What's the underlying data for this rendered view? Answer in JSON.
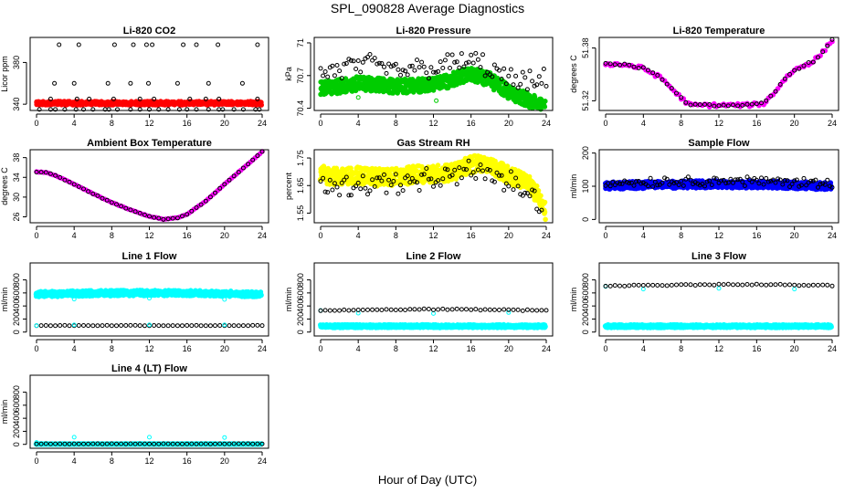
{
  "figure": {
    "title": "SPL_090828  Average Diagnostics",
    "xlabel": "Hour of Day (UTC)"
  },
  "colors": {
    "black": "#000000",
    "red": "#ff0000",
    "green": "#00cc00",
    "magenta": "#ff00ff",
    "yellow": "#ffff00",
    "blue": "#0000ff",
    "cyan": "#00ffff"
  },
  "chart_data": [
    {
      "type": "scatter",
      "title": "Li-820 CO2",
      "ylabel": "Licor ppm",
      "xlim": [
        0,
        24
      ],
      "xticks": [
        0,
        4,
        8,
        12,
        16,
        20,
        24
      ],
      "ylim": [
        334,
        404
      ],
      "yticks": [
        340,
        380
      ],
      "series": [
        {
          "color": "red",
          "filled": true,
          "kind": "band",
          "y": 341,
          "spread": 2,
          "jitter": 0.8
        },
        {
          "color": "black",
          "filled": false,
          "kind": "points",
          "x": [
            0.3,
            1.5,
            2,
            3,
            4.2,
            5,
            6,
            7.3,
            7.7,
            8.6,
            10,
            11,
            12,
            13,
            14,
            15.2,
            16,
            17,
            18.3,
            19.4,
            19.8,
            21,
            22,
            23.3,
            23.7,
            1.5,
            4.3,
            5.6,
            8.2,
            11,
            12.5,
            16.3,
            18,
            19.4,
            23.5,
            1.9,
            4,
            7.6,
            10,
            11.9,
            15,
            18.3,
            21.9,
            2.4,
            4.5,
            8.3,
            10.3,
            11.7,
            12.3,
            15.6,
            17,
            19.3,
            23.5
          ],
          "y": [
            335,
            335,
            335,
            335,
            335,
            335,
            335,
            335,
            335,
            335,
            335,
            335,
            335,
            335,
            335,
            335,
            335,
            335,
            335,
            335,
            335,
            335,
            335,
            335,
            335,
            345,
            345,
            345,
            345,
            345,
            345,
            345,
            345,
            345,
            345,
            360,
            360,
            360,
            360,
            360,
            360,
            360,
            360,
            397,
            397,
            397,
            397,
            397,
            397,
            397,
            397,
            397,
            397
          ]
        }
      ]
    },
    {
      "type": "scatter",
      "title": "Li-820 Pressure",
      "ylabel": "kPa",
      "xlim": [
        0,
        24
      ],
      "xticks": [
        0,
        4,
        8,
        12,
        16,
        20,
        24
      ],
      "ylim": [
        70.38,
        71.05
      ],
      "yticks": [
        70.4,
        70.7,
        71.0
      ],
      "series": [
        {
          "color": "green",
          "filled": true,
          "kind": "band",
          "x": [
            0,
            2,
            4,
            6,
            8,
            10,
            12,
            14,
            16,
            18,
            20,
            22,
            24
          ],
          "y": [
            70.59,
            70.6,
            70.63,
            70.62,
            70.6,
            70.61,
            70.62,
            70.66,
            70.72,
            70.66,
            70.55,
            70.48,
            70.4
          ],
          "spread": 0.09,
          "jitter": 0.02
        },
        {
          "color": "green",
          "filled": false,
          "kind": "points",
          "x": [
            4,
            12.3,
            20
          ],
          "y": [
            70.5,
            70.47,
            70.49
          ]
        },
        {
          "color": "black",
          "filled": false,
          "kind": "curve",
          "x": [
            0,
            2,
            4,
            6,
            8,
            10,
            12,
            14,
            16,
            18,
            20,
            22,
            24
          ],
          "y": [
            70.72,
            70.75,
            70.8,
            70.78,
            70.74,
            70.76,
            70.78,
            70.8,
            70.84,
            70.76,
            70.66,
            70.62,
            70.65
          ],
          "spread": 0.16,
          "jitter": 0.05
        }
      ]
    },
    {
      "type": "scatter",
      "title": "Li-820 Temperature",
      "ylabel": "degrees C",
      "xlim": [
        0,
        24
      ],
      "xticks": [
        0,
        4,
        8,
        12,
        16,
        20,
        24
      ],
      "ylim": [
        51.309,
        51.392
      ],
      "yticks": [
        51.32,
        51.38
      ],
      "series": [
        {
          "color": "magenta",
          "filled": true,
          "kind": "curve",
          "x": [
            0,
            2,
            4,
            6,
            8,
            9,
            12,
            15,
            16.8,
            18,
            19,
            20,
            22,
            23,
            24
          ],
          "y": [
            51.362,
            51.361,
            51.357,
            51.345,
            51.323,
            51.315,
            51.315,
            51.315,
            51.317,
            51.331,
            51.345,
            51.355,
            51.365,
            51.375,
            51.389
          ],
          "spread": 0,
          "jitter": 0.002
        },
        {
          "color": "black",
          "filled": false,
          "kind": "curve",
          "x": [
            0,
            2,
            4,
            6,
            8,
            9,
            12,
            15,
            16.8,
            18,
            19,
            20,
            22,
            23,
            24
          ],
          "y": [
            51.362,
            51.361,
            51.357,
            51.345,
            51.323,
            51.315,
            51.315,
            51.315,
            51.317,
            51.331,
            51.345,
            51.355,
            51.365,
            51.375,
            51.389
          ],
          "spread": 0,
          "jitter": 0.001,
          "step": 0.5
        }
      ]
    },
    {
      "type": "scatter",
      "title": "Ambient Box Temperature",
      "ylabel": "degrees C",
      "xlim": [
        0,
        24
      ],
      "xticks": [
        0,
        4,
        8,
        12,
        16,
        20,
        24
      ],
      "ylim": [
        24.8,
        39.6
      ],
      "yticks": [
        26,
        30,
        34,
        38
      ],
      "series": [
        {
          "color": "magenta",
          "filled": true,
          "kind": "curve",
          "x": [
            0,
            1,
            2,
            4,
            6,
            8,
            10,
            12,
            13.5,
            15,
            16,
            18,
            20,
            22,
            24
          ],
          "y": [
            35.1,
            35.0,
            34.4,
            32.6,
            30.7,
            28.9,
            27.4,
            26.1,
            25.5,
            25.8,
            26.5,
            29.2,
            32.6,
            35.9,
            39.2
          ],
          "spread": 0,
          "jitter": 0.05
        },
        {
          "color": "black",
          "filled": false,
          "kind": "curve",
          "x": [
            0,
            1,
            2,
            4,
            6,
            8,
            10,
            12,
            13.5,
            15,
            16,
            18,
            20,
            22,
            24
          ],
          "y": [
            35.1,
            35.0,
            34.4,
            32.6,
            30.7,
            28.9,
            27.4,
            26.1,
            25.5,
            25.8,
            26.5,
            29.2,
            32.6,
            35.9,
            39.2
          ],
          "spread": 0,
          "jitter": 0.04,
          "step": 0.5
        }
      ]
    },
    {
      "type": "scatter",
      "title": "Gas Stream RH",
      "ylabel": "percent",
      "xlim": [
        0,
        24
      ],
      "xticks": [
        0,
        4,
        8,
        12,
        16,
        20,
        24
      ],
      "ylim": [
        1.515,
        1.78
      ],
      "yticks": [
        1.55,
        1.65,
        1.75
      ],
      "series": [
        {
          "color": "yellow",
          "filled": true,
          "kind": "band",
          "x": [
            0,
            2,
            4,
            6,
            8,
            10,
            12,
            14,
            16,
            17,
            18,
            20,
            22,
            23,
            24
          ],
          "y": [
            1.69,
            1.68,
            1.685,
            1.68,
            1.68,
            1.69,
            1.69,
            1.7,
            1.725,
            1.73,
            1.72,
            1.69,
            1.66,
            1.62,
            1.55
          ],
          "spread": 0.04,
          "jitter": 0.012
        },
        {
          "color": "black",
          "filled": false,
          "kind": "curve",
          "x": [
            0,
            2,
            4,
            6,
            8,
            10,
            12,
            14,
            16,
            17,
            18,
            20,
            22,
            23,
            24
          ],
          "y": [
            1.665,
            1.645,
            1.655,
            1.66,
            1.66,
            1.66,
            1.67,
            1.68,
            1.71,
            1.7,
            1.69,
            1.66,
            1.63,
            1.59,
            1.53
          ],
          "spread": 0.06,
          "jitter": 0.018
        }
      ]
    },
    {
      "type": "scatter",
      "title": "Sample Flow",
      "ylabel": "ml/min",
      "xlim": [
        0,
        24
      ],
      "xticks": [
        0,
        4,
        8,
        12,
        16,
        20,
        24
      ],
      "ylim": [
        -10,
        210
      ],
      "yticks": [
        0,
        100,
        200
      ],
      "series": [
        {
          "color": "blue",
          "filled": true,
          "kind": "band",
          "x": [
            0,
            6,
            12,
            18,
            24
          ],
          "y": [
            102,
            105,
            106,
            105,
            100
          ],
          "spread": 14,
          "jitter": 4
        },
        {
          "color": "black",
          "filled": false,
          "kind": "curve",
          "x": [
            0,
            6,
            12,
            18,
            24
          ],
          "y": [
            110,
            114,
            116,
            114,
            108
          ],
          "spread": 22,
          "jitter": 6
        }
      ]
    },
    {
      "type": "scatter",
      "title": "Line 1 Flow",
      "ylabel": "ml/min",
      "xlim": [
        0,
        24
      ],
      "xticks": [
        0,
        4,
        8,
        12,
        16,
        20,
        24
      ],
      "ylim": [
        -60,
        1060
      ],
      "yticks": [
        0,
        200,
        400,
        600,
        800
      ],
      "series": [
        {
          "color": "cyan",
          "filled": true,
          "kind": "band",
          "x": [
            0,
            6,
            12,
            18,
            24
          ],
          "y": [
            580,
            595,
            600,
            595,
            580
          ],
          "spread": 55,
          "jitter": 15
        },
        {
          "color": "cyan",
          "filled": false,
          "kind": "points",
          "x": [
            4,
            12,
            20
          ],
          "y": [
            505,
            520,
            500
          ]
        },
        {
          "color": "black",
          "filled": false,
          "kind": "curve",
          "x": [
            0,
            24
          ],
          "y": [
            100,
            100
          ],
          "spread": 0,
          "jitter": 3,
          "step": 0.5
        },
        {
          "color": "cyan",
          "filled": false,
          "kind": "points",
          "x": [
            0,
            4,
            12,
            20
          ],
          "y": [
            100,
            110,
            110,
            110
          ]
        }
      ]
    },
    {
      "type": "scatter",
      "title": "Line 2 Flow",
      "ylabel": "ml/min",
      "xlim": [
        0,
        24
      ],
      "xticks": [
        0,
        4,
        8,
        12,
        16,
        20,
        24
      ],
      "ylim": [
        -60,
        1060
      ],
      "yticks": [
        0,
        200,
        400,
        600,
        800
      ],
      "series": [
        {
          "color": "cyan",
          "filled": true,
          "kind": "band",
          "x": [
            0,
            24
          ],
          "y": [
            90,
            90
          ],
          "spread": 30,
          "jitter": 8
        },
        {
          "color": "cyan",
          "filled": false,
          "kind": "points",
          "x": [
            0,
            4,
            12,
            20
          ],
          "y": [
            330,
            290,
            285,
            300
          ]
        },
        {
          "color": "black",
          "filled": false,
          "kind": "curve",
          "x": [
            0,
            6,
            12,
            18,
            24
          ],
          "y": [
            330,
            340,
            350,
            345,
            330
          ],
          "spread": 10,
          "jitter": 6,
          "step": 0.5
        }
      ]
    },
    {
      "type": "scatter",
      "title": "Line 3 Flow",
      "ylabel": "ml/min",
      "xlim": [
        0,
        24
      ],
      "xticks": [
        0,
        4,
        8,
        12,
        16,
        20,
        24
      ],
      "ylim": [
        -60,
        1060
      ],
      "yticks": [
        0,
        200,
        400,
        600,
        800
      ],
      "series": [
        {
          "color": "cyan",
          "filled": true,
          "kind": "band",
          "x": [
            0,
            24
          ],
          "y": [
            90,
            90
          ],
          "spread": 30,
          "jitter": 8
        },
        {
          "color": "cyan",
          "filled": false,
          "kind": "points",
          "x": [
            0,
            4,
            12,
            20
          ],
          "y": [
            700,
            660,
            670,
            660
          ]
        },
        {
          "color": "black",
          "filled": false,
          "kind": "curve",
          "x": [
            0,
            6,
            12,
            18,
            24
          ],
          "y": [
            710,
            720,
            730,
            725,
            710
          ],
          "spread": 10,
          "jitter": 6,
          "step": 0.5
        }
      ]
    },
    {
      "type": "scatter",
      "title": "Line 4 (LT) Flow",
      "ylabel": "ml/min",
      "xlim": [
        0,
        24
      ],
      "xticks": [
        0,
        4,
        8,
        12,
        16,
        20,
        24
      ],
      "ylim": [
        -60,
        1060
      ],
      "yticks": [
        0,
        200,
        400,
        600,
        800
      ],
      "series": [
        {
          "color": "cyan",
          "filled": true,
          "kind": "band",
          "x": [
            0,
            24
          ],
          "y": [
            5,
            5
          ],
          "spread": 6,
          "jitter": 2
        },
        {
          "color": "cyan",
          "filled": false,
          "kind": "points",
          "x": [
            0,
            4,
            12,
            20
          ],
          "y": [
            30,
            110,
            110,
            105
          ]
        },
        {
          "color": "black",
          "filled": false,
          "kind": "curve",
          "x": [
            0,
            24
          ],
          "y": [
            8,
            8
          ],
          "spread": 0,
          "jitter": 2,
          "step": 0.5
        }
      ]
    }
  ]
}
